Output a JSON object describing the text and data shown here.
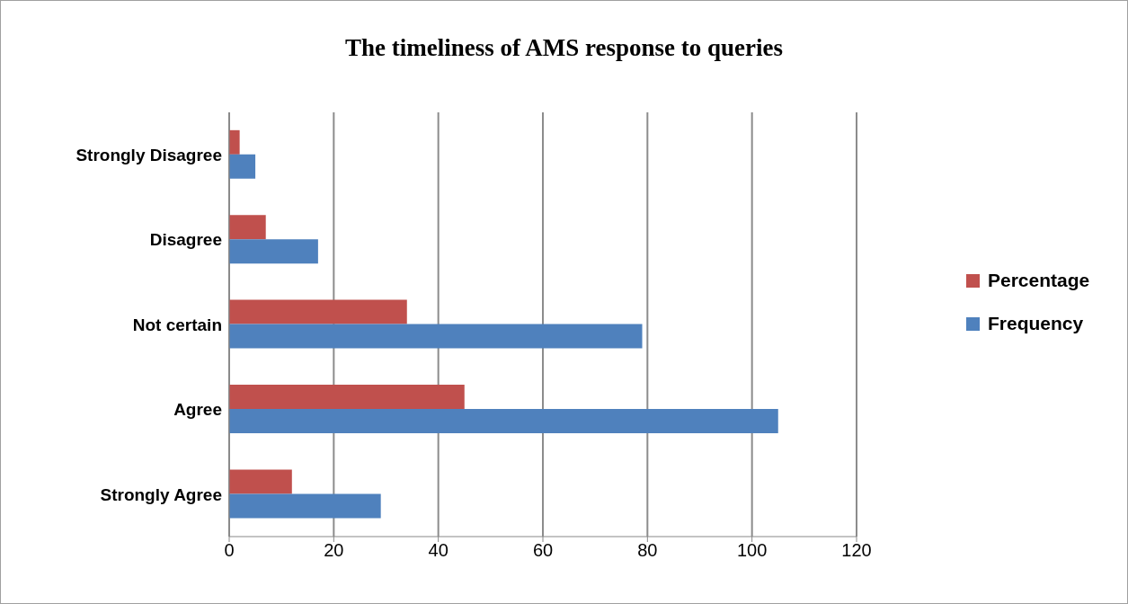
{
  "chart_data": {
    "type": "bar",
    "orientation": "horizontal",
    "title": "The timeliness of AMS response to queries",
    "categories": [
      "Strongly Disagree",
      "Disagree",
      "Not certain",
      "Agree",
      "Strongly Agree"
    ],
    "series": [
      {
        "name": "Percentage",
        "color": "#c0504d",
        "values": [
          2,
          7,
          34,
          45,
          12
        ]
      },
      {
        "name": "Frequency",
        "color": "#4f81bd",
        "values": [
          5,
          17,
          79,
          105,
          29
        ]
      }
    ],
    "xlim": [
      0,
      120
    ],
    "xticks": [
      0,
      20,
      40,
      60,
      80,
      100,
      120
    ],
    "grid": "x",
    "legend": "right"
  }
}
